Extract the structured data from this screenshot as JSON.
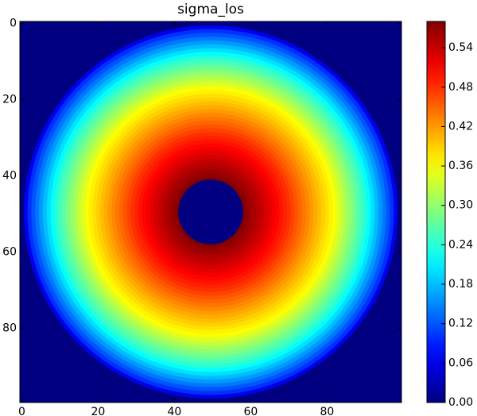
{
  "chart_data": {
    "type": "radial-heatmap",
    "title": "sigma_los",
    "colormap": "jet",
    "xlim": [
      -0.5,
      99.5
    ],
    "ylim": [
      99.5,
      -0.5
    ],
    "xticks": [
      0,
      20,
      40,
      60,
      80
    ],
    "yticks": [
      0,
      20,
      40,
      60,
      80
    ],
    "center": [
      49.5,
      49.5
    ],
    "background": 0,
    "profile": {
      "r": [
        49,
        48,
        47,
        46,
        45,
        44,
        43,
        42,
        41,
        40,
        39,
        38,
        37,
        36,
        35,
        34,
        33,
        32,
        31,
        30,
        29,
        28,
        27,
        26,
        25,
        24,
        23,
        22,
        21,
        20,
        19,
        18,
        17,
        16,
        15,
        14,
        13,
        12,
        11,
        10,
        9,
        8.5
      ],
      "values": [
        0.06,
        0.1,
        0.12,
        0.14,
        0.16,
        0.18,
        0.2,
        0.22,
        0.24,
        0.255,
        0.27,
        0.285,
        0.3,
        0.315,
        0.33,
        0.345,
        0.36,
        0.37,
        0.38,
        0.39,
        0.4,
        0.41,
        0.42,
        0.43,
        0.44,
        0.45,
        0.46,
        0.47,
        0.48,
        0.489,
        0.497,
        0.506,
        0.514,
        0.523,
        0.531,
        0.54,
        0.548,
        0.556,
        0.564,
        0.572,
        0.58,
        0
      ]
    },
    "clim": [
      0,
      0.58
    ],
    "cticks": [
      {
        "value": 0,
        "label": "0.00"
      },
      {
        "value": 0.06,
        "label": "0.06"
      },
      {
        "value": 0.12,
        "label": "0.12"
      },
      {
        "value": 0.18,
        "label": "0.18"
      },
      {
        "value": 0.24,
        "label": "0.24"
      },
      {
        "value": 0.3,
        "label": "0.30"
      },
      {
        "value": 0.36,
        "label": "0.36"
      },
      {
        "value": 0.42,
        "label": "0.42"
      },
      {
        "value": 0.48,
        "label": "0.48"
      },
      {
        "value": 0.54,
        "label": "0.54"
      }
    ]
  }
}
